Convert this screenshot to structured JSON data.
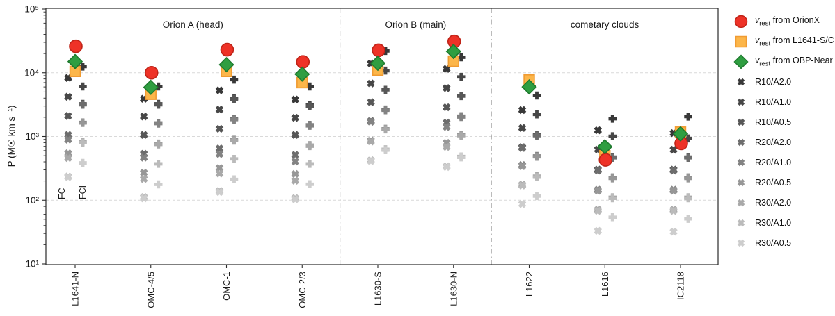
{
  "chart_data": {
    "type": "scatter",
    "title": "",
    "ylabel": "P (M☉ km s⁻¹)",
    "yscale": "log",
    "ylim": [
      10,
      100000
    ],
    "ytick_labels": [
      "10⁵",
      "10⁴",
      "10³",
      "10²",
      "10¹"
    ],
    "ytick_values": [
      100000,
      10000,
      1000,
      100,
      10
    ],
    "gridline_values": [
      10000,
      1000,
      100
    ],
    "grid": "dashed-horizontal",
    "legend_position": "right-outside",
    "sections": [
      {
        "label": "Orion A (head)",
        "categories": [
          "L1641-N",
          "OMC-4/5",
          "OMC-1",
          "OMC-2/3"
        ]
      },
      {
        "label": "Orion B (main)",
        "categories": [
          "L1630-S",
          "L1630-N"
        ]
      },
      {
        "label": "cometary clouds",
        "categories": [
          "L1622",
          "L1616",
          "IC2118"
        ]
      }
    ],
    "categories": [
      "L1641-N",
      "OMC-4/5",
      "OMC-1",
      "OMC-2/3",
      "L1630-S",
      "L1630-N",
      "L1622",
      "L1616",
      "IC2118"
    ],
    "column_labels": {
      "fc": "FC",
      "fci": "FCI"
    },
    "special_series": [
      {
        "id": "orionx",
        "marker": "circle",
        "fill": "#ee3227",
        "edge": "#bf2418",
        "label": {
          "var": "v",
          "sub": "rest",
          "text": " from OrionX"
        },
        "values": [
          26000,
          10000,
          23000,
          14800,
          22500,
          31000,
          null,
          430,
          780
        ]
      },
      {
        "id": "l1641sc",
        "marker": "square",
        "fill": "#fcb64a",
        "edge": "#f09b32",
        "label": {
          "var": "v",
          "sub": "rest",
          "text": " from L1641-S/C"
        },
        "values": [
          10500,
          4600,
          10500,
          7000,
          11000,
          15200,
          7700,
          500,
          1170
        ]
      },
      {
        "id": "obpnear",
        "marker": "diamond",
        "fill": "#2f9e41",
        "edge": "#1e7a2e",
        "label": {
          "var": "v",
          "sub": "rest",
          "text": " from OBP-Near"
        },
        "values": [
          15000,
          5900,
          13400,
          9500,
          14100,
          21600,
          6000,
          690,
          1100
        ]
      }
    ],
    "runs": [
      {
        "label": "R10/A2.0",
        "color": "#383838"
      },
      {
        "label": "R10/A1.0",
        "color": "#474747"
      },
      {
        "label": "R10/A0.5",
        "color": "#575757"
      },
      {
        "label": "R20/A2.0",
        "color": "#6d6d6d"
      },
      {
        "label": "R20/A1.0",
        "color": "#838383"
      },
      {
        "label": "R20/A0.5",
        "color": "#979797"
      },
      {
        "label": "R30/A2.0",
        "color": "#a9a9a9"
      },
      {
        "label": "R30/A1.0",
        "color": "#bbbbbb"
      },
      {
        "label": "R30/A0.5",
        "color": "#cdcdcd"
      }
    ],
    "fc_values": {
      "L1641-N": [
        8300,
        4200,
        2100,
        1060,
        890,
        545,
        460,
        235,
        230
      ],
      "OMC-4/5": [
        3900,
        2060,
        1060,
        535,
        465,
        270,
        215,
        112,
        107
      ],
      "OMC-1": [
        5300,
        2650,
        1320,
        650,
        530,
        320,
        262,
        140,
        134
      ],
      "OMC-2/3": [
        3800,
        1960,
        1060,
        515,
        405,
        258,
        202,
        108,
        103
      ],
      "L1630-S": [
        14000,
        6800,
        3450,
        1760,
        1700,
        865,
        835,
        425,
        410
      ],
      "L1630-N": [
        11500,
        5750,
        2870,
        1650,
        1410,
        795,
        685,
        340,
        332
      ],
      "L1622": [
        2600,
        1360,
        680,
        660,
        356,
        342,
        176,
        170,
        87
      ],
      "L1616": [
        1250,
        625,
        302,
        292,
        146,
        141,
        71,
        68,
        33
      ],
      "IC2118": [
        1130,
        620,
        302,
        292,
        146,
        141,
        71,
        68,
        32
      ]
    },
    "fci_values": {
      "L1641-N": [
        12500,
        6100,
        3250,
        3150,
        1660,
        1630,
        820,
        800,
        385
      ],
      "OMC-4/5": [
        6100,
        3250,
        3150,
        1630,
        1590,
        775,
        750,
        372,
        177
      ],
      "OMC-1": [
        7800,
        3950,
        3850,
        1900,
        1840,
        890,
        860,
        445,
        212
      ],
      "OMC-2/3": [
        6100,
        3100,
        3000,
        1520,
        1470,
        730,
        705,
        372,
        178
      ],
      "L1630-S": [
        22000,
        10800,
        5400,
        2650,
        2580,
        1320,
        1290,
        630,
        610
      ],
      "L1630-N": [
        17500,
        8600,
        4300,
        2080,
        2020,
        1060,
        1030,
        485,
        470
      ],
      "L1622": [
        4400,
        2220,
        1060,
        1030,
        495,
        480,
        238,
        230,
        116
      ],
      "L1616": [
        1900,
        1010,
        475,
        462,
        228,
        220,
        111,
        107,
        54
      ],
      "IC2118": [
        2050,
        930,
        475,
        462,
        228,
        220,
        111,
        107,
        51
      ]
    }
  },
  "colors": {
    "grid": "#d9d9d9",
    "spine": "#2a2a2a",
    "separator": "#9a9a9a",
    "text": "#1a1a1a"
  }
}
